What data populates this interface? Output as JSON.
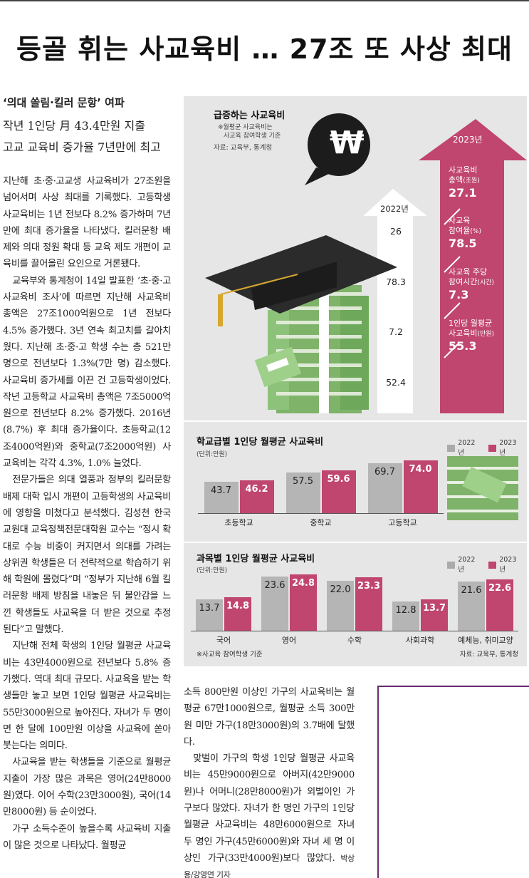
{
  "headline": "등골 휘는 사교육비 … 27조 또 사상 최대",
  "subheads": [
    "‘의대 쏠림·킬러 문항’ 여파",
    "작년 1인당 月 43.4만원 지출",
    "고교 교육비 증가율 7년만에 최고"
  ],
  "left_column": [
    "지난해 초·중·고교생 사교육비가 27조원을 넘어서며 사상 최대를 기록했다. 고등학생 사교육비는 1년 전보다 8.2% 증가하며 7년 만에 최대 증가율을 나타냈다. 킬러문항 배제와 의대 정원 확대 등 교육 제도 개편이 교육비를 끌어올린 요인으로 거론됐다.",
    "교육부와 통계청이 14일 발표한 ‘초·중·고 사교육비 조사’에 따르면 지난해 사교육비 총액은 27조1000억원으로 1년 전보다 4.5% 증가했다. 3년 연속 최고치를 갈아치웠다. 지난해 초·중·고 학생 수는 총 521만 명으로 전년보다 1.3%(7만 명) 감소했다. 사교육비 증가세를 이끈 건 고등학생이었다. 작년 고등학교 사교육비 총액은 7조5000억원으로 전년보다 8.2% 증가했다. 2016년(8.7%) 후 최대 증가율이다. 초등학교(12조4000억원)와 중학교(7조2000억원) 사교육비는 각각 4.3%, 1.0% 늘었다.",
    "전문가들은 의대 열풍과 정부의 킬러문항 배제 대학 입시 개편이 고등학생의 사교육비에 영향을 미쳤다고 분석했다. 김성천 한국교원대 교육정책전문대학원 교수는 “정시 확대로 수능 비중이 커지면서 의대를 가려는 상위권 학생들은 더 전략적으로 학습하기 위해 학원에 몰렸다”며 “정부가 지난해 6월 킬러문항 배제 방침을 내놓은 뒤 불안감을 느낀 학생들도 사교육을 더 받은 것으로 추정된다”고 말했다.",
    "지난해 전체 학생의 1인당 월평균 사교육비는 43만4000원으로 전년보다 5.8% 증가했다. 역대 최대 규모다. 사교육을 받는 학생들만 놓고 보면 1인당 월평균 사교육비는 55만3000원으로 높아진다. 자녀가 두 명이면 한 달에 100만원 이상을 사교육에 쏟아붓는다는 의미다.",
    "사교육을 받는 학생들을 기준으로 월평균 지출이 가장 많은 과목은 영어(24만8000원)였다. 이어 수학(23만3000원), 국어(14만8000원) 등 순이었다.",
    "가구 소득수준이 높을수록 사교육비 지출이 많은 것으로 나타났다. 월평균"
  ],
  "bottom_column": [
    "소득 800만원 이상인 가구의 사교육비는 월평균 67만1000원으로, 월평균 소득 300만원 미만 가구(18만3000원)의 3.7배에 달했다.",
    "맞벌이 가구의 학생 1인당 월평균 사교육비는 45만9000원으로 아버지(42만9000원)나 어머니(28만8000원)가 외벌이인 가구보다 많았다. 자녀가 한 명인 가구의 1인당 월평균 사교육비는 48만6000원으로 자녀 두 명인 가구(45만6000원)와 자녀 세 명 이상인 가구(33만4000원)보다 많았다."
  ],
  "byline": "박상용/강영연 기자",
  "graphic": {
    "title": "급증하는 사교육비",
    "note": [
      "※월평균 사교육비는",
      "사교육 참여학생 기준"
    ],
    "source_top": "자료: 교육부, 통계청",
    "year_2022": "2022년",
    "year_2023": "2023년",
    "won_symbol": "₩",
    "metrics": [
      {
        "label": [
          "사교육비",
          "총액"
        ],
        "unit": "(조원)",
        "v2022": "26",
        "v2023": "27.1"
      },
      {
        "label": [
          "사교육",
          "참여율"
        ],
        "unit": "(%)",
        "v2022": "78.3",
        "v2023": "78.5"
      },
      {
        "label": [
          "사교육 주당",
          "참여시간"
        ],
        "unit": "(시간)",
        "v2022": "7.2",
        "v2023": "7.3"
      },
      {
        "label": [
          "1인당 월평균",
          "사교육비"
        ],
        "unit": "(만원)",
        "v2022": "52.4",
        "v2023": "55.3"
      }
    ],
    "colors": {
      "pink": "#c0456f",
      "gray": "#b5b5b5",
      "bg": "#e6e6e6"
    }
  },
  "chart_data": [
    {
      "type": "bar",
      "title": "학교급별 1인당 월평균 사교육비",
      "unit": "(단위:만원)",
      "categories": [
        "초등학교",
        "중학교",
        "고등학교"
      ],
      "series": [
        {
          "name": "2022년",
          "values": [
            43.7,
            57.5,
            69.7
          ]
        },
        {
          "name": "2023년",
          "values": [
            46.2,
            59.6,
            74.0
          ]
        }
      ],
      "value_labels": {
        "2022년": [
          "43.7",
          "57.5",
          "69.7"
        ],
        "2023년": [
          "46.2",
          "59.6",
          "74.0"
        ]
      }
    },
    {
      "type": "bar",
      "title": "과목별 1인당 월평균 사교육비",
      "unit": "(단위:만원)",
      "categories": [
        "국어",
        "영어",
        "수학",
        "사회과학",
        "예체능, 취미교양"
      ],
      "series": [
        {
          "name": "2022년",
          "values": [
            13.7,
            23.6,
            22.0,
            12.8,
            21.6
          ]
        },
        {
          "name": "2023년",
          "values": [
            14.8,
            24.8,
            23.3,
            13.7,
            22.6
          ]
        }
      ],
      "value_labels": {
        "2022년": [
          "13.7",
          "23.6",
          "22.0",
          "12.8",
          "21.6"
        ],
        "2023년": [
          "14.8",
          "24.8",
          "23.3",
          "13.7",
          "22.6"
        ]
      },
      "footnote": "※사교육 참여학생 기준",
      "source": "자료: 교육부, 통계청"
    }
  ]
}
